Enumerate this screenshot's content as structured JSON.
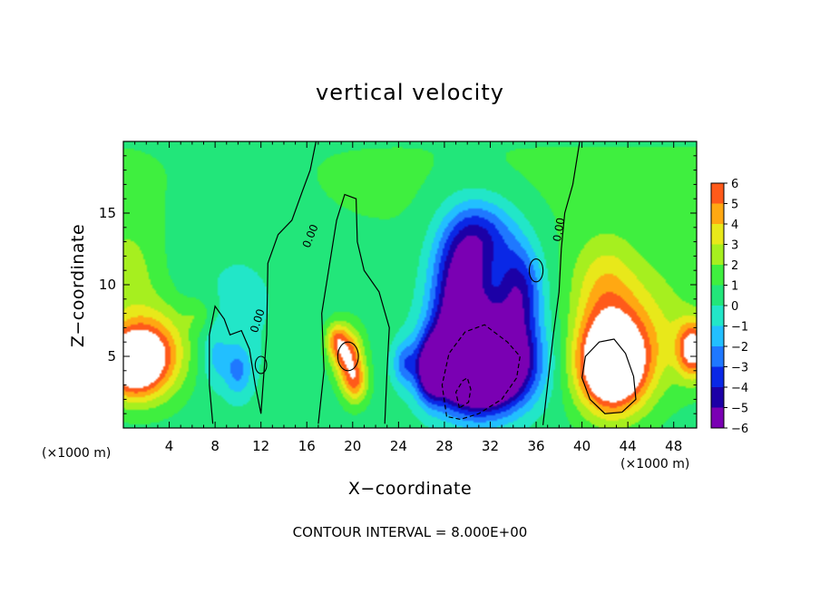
{
  "chart_data": {
    "type": "heatmap",
    "title": "vertical velocity",
    "xlabel": "X−coordinate",
    "ylabel": "Z−coordinate",
    "x_unit_label": "(×1000 m)",
    "footnote": "CONTOUR INTERVAL = 8.000E+00",
    "xlim": [
      0,
      50
    ],
    "ylim": [
      0,
      20
    ],
    "xticks": [
      "4",
      "8",
      "12",
      "16",
      "20",
      "24",
      "28",
      "32",
      "36",
      "40",
      "44",
      "48"
    ],
    "xtick_values": [
      4,
      8,
      12,
      16,
      20,
      24,
      28,
      32,
      36,
      40,
      44,
      48
    ],
    "yticks": [
      "5",
      "10",
      "15"
    ],
    "ytick_values": [
      5,
      10,
      15
    ],
    "colorbar": {
      "levels": [
        "6",
        "5",
        "4",
        "3",
        "2",
        "1",
        "0",
        "−1",
        "−2",
        "−3",
        "−4",
        "−5",
        "−6"
      ],
      "range": [
        -6,
        6
      ],
      "above_max_color": "#ffffff"
    },
    "contour_labels": [
      {
        "text": "0.00",
        "x": 16.6,
        "y": 13.3,
        "angle": -68
      },
      {
        "text": "0.00",
        "x": 12.0,
        "y": 7.4,
        "angle": -72
      },
      {
        "text": "0.00",
        "x": 38.3,
        "y": 13.8,
        "angle": -80
      }
    ],
    "features": [
      {
        "sign": "positive",
        "x": 42.6,
        "z": 4.4,
        "peak": 10
      },
      {
        "sign": "positive",
        "x": 1.5,
        "z": 4.6,
        "peak": 8
      },
      {
        "sign": "positive",
        "x": 19.5,
        "z": 4.9,
        "peak": 5.5
      },
      {
        "sign": "negative",
        "x": 31.0,
        "z": 4.5,
        "peak": -12
      },
      {
        "sign": "negative",
        "x": 28.5,
        "z": 10.5,
        "peak": -5
      }
    ]
  }
}
